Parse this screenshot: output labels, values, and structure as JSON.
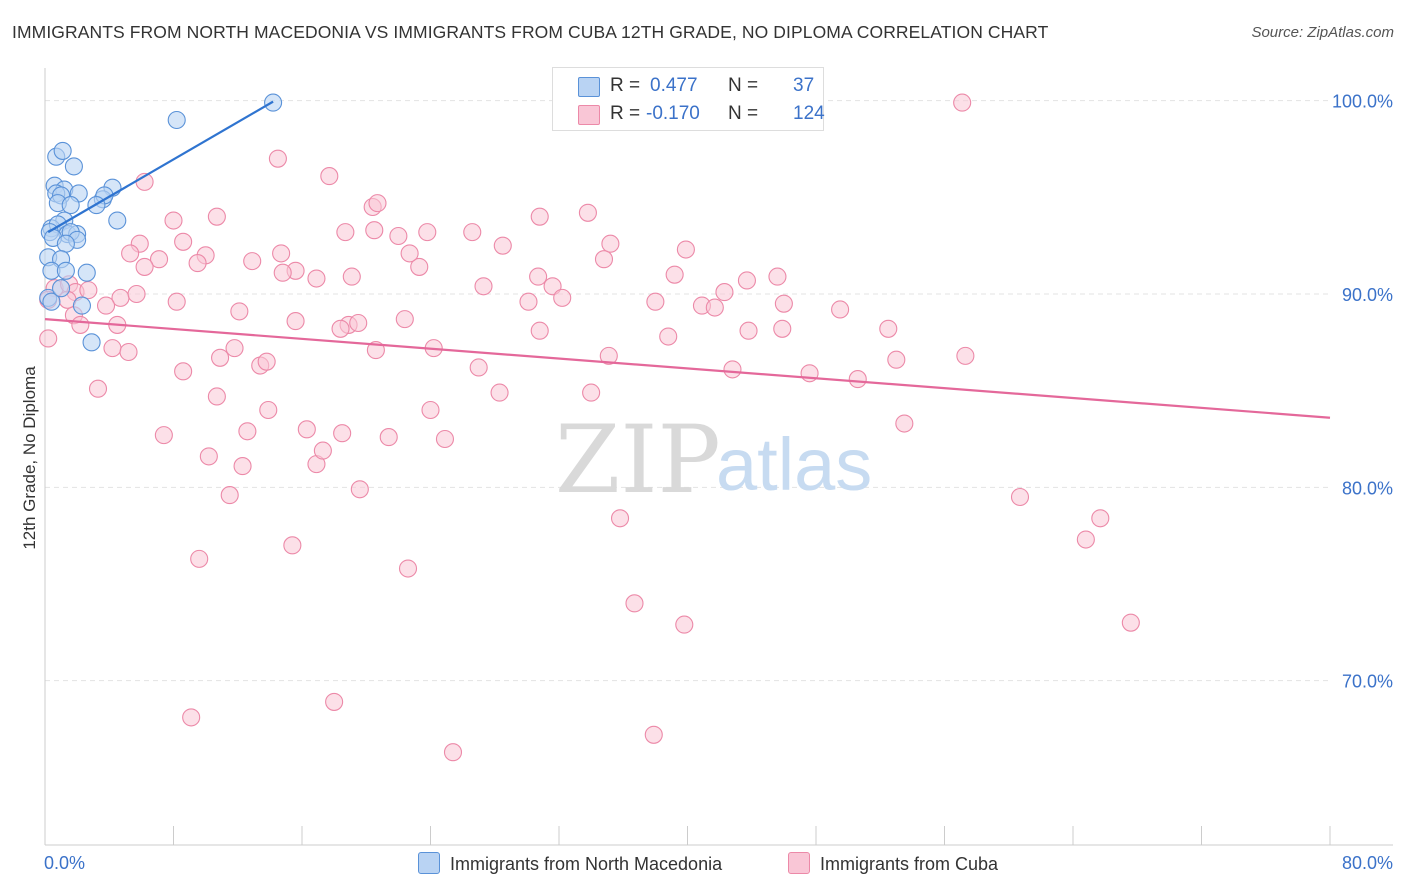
{
  "header": {
    "title": "IMMIGRANTS FROM NORTH MACEDONIA VS IMMIGRANTS FROM CUBA 12TH GRADE, NO DIPLOMA CORRELATION CHART",
    "source": "Source: ZipAtlas.com"
  },
  "legend": {
    "r_label": "R =",
    "n_label": "N =",
    "series": [
      {
        "name": "Immigrants from North Macedonia",
        "r": "0.477",
        "n": "37"
      },
      {
        "name": "Immigrants from Cuba",
        "r": "-0.170",
        "n": "124"
      }
    ]
  },
  "watermark": {
    "zip": "ZIP",
    "atlas": "atlas"
  },
  "colors": {
    "blue_fill": "#b9d3f3",
    "blue_stroke": "#5a92d8",
    "blue_line": "#2f74d0",
    "pink_fill": "#f9c6d6",
    "pink_stroke": "#ec89a8",
    "pink_line": "#e4689a",
    "tick_text": "#3b72c9"
  },
  "chart_data": {
    "type": "scatter",
    "xlabel": "",
    "ylabel": "12th Grade, No Diploma",
    "xlim": [
      0,
      80
    ],
    "ylim": [
      61.5,
      102
    ],
    "x_tick_labels": [
      "0.0%",
      "80.0%"
    ],
    "y_ticks": [
      100,
      90,
      80,
      70
    ],
    "y_tick_labels": [
      "100.0%",
      "90.0%",
      "80.0%",
      "70.0%"
    ],
    "grid": true,
    "series": [
      {
        "name": "Immigrants from North Macedonia",
        "color": "blue",
        "points": [
          [
            14.2,
            99.9
          ],
          [
            8.2,
            99.0
          ],
          [
            0.7,
            97.1
          ],
          [
            1.1,
            97.4
          ],
          [
            1.8,
            96.6
          ],
          [
            0.6,
            95.6
          ],
          [
            1.2,
            95.4
          ],
          [
            0.7,
            95.2
          ],
          [
            1.0,
            95.1
          ],
          [
            4.2,
            95.5
          ],
          [
            2.1,
            95.2
          ],
          [
            3.6,
            94.9
          ],
          [
            3.7,
            95.1
          ],
          [
            0.8,
            94.7
          ],
          [
            1.6,
            94.6
          ],
          [
            3.2,
            94.6
          ],
          [
            4.5,
            93.8
          ],
          [
            1.2,
            93.8
          ],
          [
            0.4,
            93.4
          ],
          [
            0.8,
            93.6
          ],
          [
            1.4,
            93.1
          ],
          [
            2.0,
            93.1
          ],
          [
            0.3,
            93.2
          ],
          [
            0.5,
            92.9
          ],
          [
            1.6,
            93.2
          ],
          [
            2.0,
            92.8
          ],
          [
            1.3,
            92.6
          ],
          [
            0.2,
            91.9
          ],
          [
            1.0,
            91.8
          ],
          [
            0.4,
            91.2
          ],
          [
            1.3,
            91.2
          ],
          [
            2.6,
            91.1
          ],
          [
            0.2,
            89.8
          ],
          [
            0.4,
            89.6
          ],
          [
            1.0,
            90.3
          ],
          [
            2.3,
            89.4
          ],
          [
            2.9,
            87.5
          ]
        ],
        "trendline": {
          "x": [
            0.2,
            14.2
          ],
          "y": [
            93.2,
            99.95
          ]
        }
      },
      {
        "name": "Immigrants from Cuba",
        "color": "pink",
        "points": [
          [
            57.1,
            99.9
          ],
          [
            14.5,
            97.0
          ],
          [
            17.7,
            96.1
          ],
          [
            6.2,
            95.8
          ],
          [
            20.4,
            94.5
          ],
          [
            20.7,
            94.7
          ],
          [
            33.8,
            94.2
          ],
          [
            30.8,
            94.0
          ],
          [
            10.7,
            94.0
          ],
          [
            8.0,
            93.8
          ],
          [
            18.7,
            93.2
          ],
          [
            20.5,
            93.3
          ],
          [
            22.0,
            93.0
          ],
          [
            23.8,
            93.2
          ],
          [
            26.6,
            93.2
          ],
          [
            5.9,
            92.6
          ],
          [
            8.6,
            92.7
          ],
          [
            5.3,
            92.1
          ],
          [
            14.7,
            92.1
          ],
          [
            10.0,
            92.0
          ],
          [
            7.1,
            91.8
          ],
          [
            12.9,
            91.7
          ],
          [
            28.5,
            92.5
          ],
          [
            35.2,
            92.6
          ],
          [
            39.9,
            92.3
          ],
          [
            6.2,
            91.4
          ],
          [
            9.5,
            91.6
          ],
          [
            15.6,
            91.2
          ],
          [
            14.8,
            91.1
          ],
          [
            23.3,
            91.4
          ],
          [
            22.7,
            92.1
          ],
          [
            34.8,
            91.8
          ],
          [
            39.2,
            91.0
          ],
          [
            30.7,
            90.9
          ],
          [
            16.9,
            90.8
          ],
          [
            19.1,
            90.9
          ],
          [
            45.6,
            90.9
          ],
          [
            43.7,
            90.7
          ],
          [
            0.6,
            90.3
          ],
          [
            1.5,
            90.5
          ],
          [
            1.9,
            90.1
          ],
          [
            2.7,
            90.2
          ],
          [
            4.7,
            89.8
          ],
          [
            5.7,
            90.0
          ],
          [
            27.3,
            90.4
          ],
          [
            31.6,
            90.4
          ],
          [
            42.3,
            90.1
          ],
          [
            0.2,
            89.7
          ],
          [
            1.4,
            89.7
          ],
          [
            3.8,
            89.4
          ],
          [
            8.2,
            89.6
          ],
          [
            30.1,
            89.6
          ],
          [
            32.2,
            89.8
          ],
          [
            38.0,
            89.6
          ],
          [
            40.9,
            89.4
          ],
          [
            41.7,
            89.3
          ],
          [
            46.0,
            89.5
          ],
          [
            49.5,
            89.2
          ],
          [
            12.1,
            89.1
          ],
          [
            1.8,
            88.9
          ],
          [
            2.2,
            88.4
          ],
          [
            4.5,
            88.4
          ],
          [
            15.6,
            88.6
          ],
          [
            18.9,
            88.4
          ],
          [
            19.5,
            88.5
          ],
          [
            22.4,
            88.7
          ],
          [
            30.8,
            88.1
          ],
          [
            18.4,
            88.2
          ],
          [
            43.8,
            88.1
          ],
          [
            45.9,
            88.2
          ],
          [
            52.5,
            88.2
          ],
          [
            38.8,
            87.8
          ],
          [
            0.2,
            87.7
          ],
          [
            4.2,
            87.2
          ],
          [
            5.2,
            87.0
          ],
          [
            11.8,
            87.2
          ],
          [
            20.6,
            87.1
          ],
          [
            24.2,
            87.2
          ],
          [
            35.1,
            86.8
          ],
          [
            57.3,
            86.8
          ],
          [
            10.9,
            86.7
          ],
          [
            13.4,
            86.3
          ],
          [
            13.8,
            86.5
          ],
          [
            27.0,
            86.2
          ],
          [
            42.8,
            86.1
          ],
          [
            47.6,
            85.9
          ],
          [
            50.6,
            85.6
          ],
          [
            53.0,
            86.6
          ],
          [
            8.6,
            86.0
          ],
          [
            3.3,
            85.1
          ],
          [
            28.3,
            84.9
          ],
          [
            34.0,
            84.9
          ],
          [
            10.7,
            84.7
          ],
          [
            13.9,
            84.0
          ],
          [
            24.0,
            84.0
          ],
          [
            12.6,
            82.9
          ],
          [
            16.3,
            83.0
          ],
          [
            18.5,
            82.8
          ],
          [
            21.4,
            82.6
          ],
          [
            24.9,
            82.5
          ],
          [
            7.4,
            82.7
          ],
          [
            53.5,
            83.3
          ],
          [
            10.2,
            81.6
          ],
          [
            12.3,
            81.1
          ],
          [
            16.9,
            81.2
          ],
          [
            17.3,
            81.9
          ],
          [
            19.6,
            79.9
          ],
          [
            11.5,
            79.6
          ],
          [
            60.7,
            79.5
          ],
          [
            35.8,
            78.4
          ],
          [
            65.7,
            78.4
          ],
          [
            64.8,
            77.3
          ],
          [
            15.4,
            77.0
          ],
          [
            9.6,
            76.3
          ],
          [
            22.6,
            75.8
          ],
          [
            36.7,
            74.0
          ],
          [
            39.8,
            72.9
          ],
          [
            67.6,
            73.0
          ],
          [
            9.1,
            68.1
          ],
          [
            18.0,
            68.9
          ],
          [
            37.9,
            67.2
          ],
          [
            25.4,
            66.3
          ]
        ],
        "trendline": {
          "x": [
            0,
            80
          ],
          "y": [
            88.7,
            83.6
          ]
        }
      }
    ]
  }
}
